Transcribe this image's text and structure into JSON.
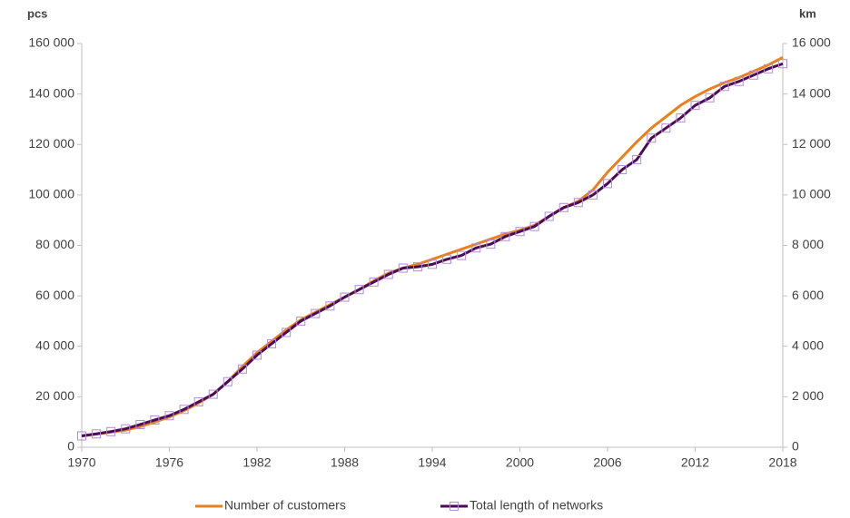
{
  "chart_data": {
    "type": "line",
    "y_label": "pcs",
    "y2_label": "km",
    "x": [
      1970,
      1971,
      1972,
      1973,
      1974,
      1975,
      1976,
      1977,
      1978,
      1979,
      1980,
      1981,
      1982,
      1983,
      1984,
      1985,
      1986,
      1987,
      1988,
      1989,
      1990,
      1991,
      1992,
      1993,
      1994,
      1995,
      1996,
      1997,
      1998,
      1999,
      2000,
      2001,
      2002,
      2003,
      2004,
      2005,
      2006,
      2007,
      2008,
      2009,
      2010,
      2011,
      2012,
      2013,
      2014,
      2015,
      2016,
      2017,
      2018
    ],
    "xlim": [
      1970,
      2018
    ],
    "xticks": [
      1970,
      1976,
      1982,
      1988,
      1994,
      2000,
      2006,
      2012,
      2018
    ],
    "ylim": [
      0,
      160000
    ],
    "yticks": [
      0,
      {
        "value": 20000,
        "label": "20 000"
      },
      {
        "value": 40000,
        "label": "40 000"
      },
      {
        "value": 60000,
        "label": "60 000"
      },
      {
        "value": 80000,
        "label": "80 000"
      },
      {
        "value": 100000,
        "label": "100 000"
      },
      {
        "value": 120000,
        "label": "120 000"
      },
      {
        "value": 140000,
        "label": "140 000"
      },
      {
        "value": 160000,
        "label": "160 000"
      }
    ],
    "y2lim": [
      0,
      16000
    ],
    "y2ticks": [
      0,
      {
        "value": 2000,
        "label": "2 000"
      },
      {
        "value": 4000,
        "label": "4 000"
      },
      {
        "value": 6000,
        "label": "6 000"
      },
      {
        "value": 8000,
        "label": "8 000"
      },
      {
        "value": 10000,
        "label": "10 000"
      },
      {
        "value": 12000,
        "label": "12 000"
      },
      {
        "value": 14000,
        "label": "14 000"
      },
      {
        "value": 16000,
        "label": "16 000"
      }
    ],
    "legend": "bottom",
    "series": [
      {
        "name": "Number of customers",
        "color": "#e8801e",
        "axis": "y",
        "values": [
          4500,
          5200,
          6000,
          6800,
          8200,
          10000,
          12000,
          14500,
          17500,
          21000,
          26000,
          32000,
          37500,
          42000,
          46500,
          50500,
          53500,
          56500,
          59500,
          62500,
          66000,
          69000,
          71000,
          72500,
          74500,
          76500,
          78500,
          80500,
          82500,
          84500,
          86000,
          88000,
          91500,
          95000,
          97500,
          102000,
          109000,
          115000,
          121000,
          126500,
          131000,
          135500,
          139000,
          142000,
          144500,
          146500,
          149000,
          151500,
          154500
        ]
      },
      {
        "name": "Total length of networks",
        "color": "#4b0c55",
        "marker_color": "#b48ad6",
        "axis": "y2",
        "values": [
          450,
          530,
          620,
          730,
          900,
          1080,
          1250,
          1500,
          1800,
          2100,
          2600,
          3100,
          3650,
          4100,
          4550,
          5000,
          5300,
          5600,
          5950,
          6250,
          6550,
          6850,
          7100,
          7150,
          7250,
          7450,
          7600,
          7900,
          8050,
          8350,
          8550,
          8750,
          9150,
          9500,
          9700,
          10000,
          10450,
          11000,
          11400,
          12250,
          12650,
          13050,
          13550,
          13850,
          14300,
          14500,
          14750,
          15000,
          15200
        ]
      }
    ]
  }
}
